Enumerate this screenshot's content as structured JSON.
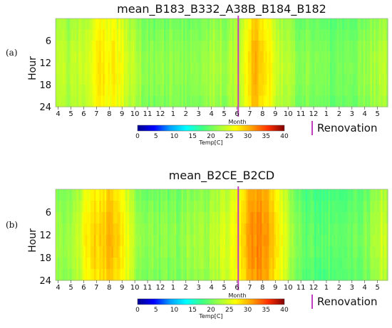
{
  "colors": {
    "renovation": "#c040c0",
    "colormap": [
      "#00008f",
      "#0000ff",
      "#00a0ff",
      "#00ffff",
      "#40ff80",
      "#a0ff40",
      "#ffff00",
      "#ffa000",
      "#ff3000",
      "#800000"
    ]
  },
  "renovation_legend": "Renovation",
  "chart_data": [
    {
      "type": "heatmap",
      "panel": "(a)",
      "title": "mean_B183_B332_A38B_B184_B182",
      "xlabel": "Month",
      "ylabel": "Hour",
      "x_ticks": [
        "4",
        "5",
        "6",
        "7",
        "8",
        "9",
        "10",
        "11",
        "12",
        "1",
        "2",
        "3",
        "4",
        "5",
        "6",
        "7",
        "8",
        "9",
        "10",
        "11",
        "12",
        "1",
        "2",
        "3",
        "4",
        "5"
      ],
      "y_ticks": [
        "6",
        "12",
        "18",
        "24"
      ],
      "y_range": [
        0,
        24
      ],
      "colorbar": {
        "label": "Temp[C]",
        "range": [
          0,
          40
        ],
        "ticks": [
          "0",
          "5",
          "10",
          "15",
          "20",
          "25",
          "30",
          "35",
          "40"
        ]
      },
      "renovation_index": 14.3,
      "monthly_mean_temp": [
        22,
        22,
        24,
        26,
        26,
        24,
        21,
        20,
        20,
        20,
        20,
        21,
        22,
        21,
        23,
        29,
        27,
        23,
        21,
        20,
        20,
        19,
        19,
        20,
        21,
        22
      ]
    },
    {
      "type": "heatmap",
      "panel": "(b)",
      "title": "mean_B2CE_B2CD",
      "xlabel": "Month",
      "ylabel": "Hour",
      "x_ticks": [
        "4",
        "5",
        "6",
        "7",
        "8",
        "9",
        "10",
        "11",
        "12",
        "1",
        "2",
        "3",
        "4",
        "5",
        "6",
        "7",
        "8",
        "9",
        "10",
        "11",
        "12",
        "1",
        "2",
        "3",
        "4",
        "5"
      ],
      "y_ticks": [
        "6",
        "12",
        "18",
        "24"
      ],
      "y_range": [
        0,
        24
      ],
      "colorbar": {
        "label": "Temp[C]",
        "range": [
          0,
          40
        ],
        "ticks": [
          "0",
          "5",
          "10",
          "15",
          "20",
          "25",
          "30",
          "35",
          "40"
        ]
      },
      "renovation_index": 14.3,
      "monthly_mean_temp": [
        21,
        22,
        26,
        28,
        29,
        25,
        21,
        20,
        20,
        20,
        21,
        21,
        22,
        24,
        27,
        31,
        30,
        26,
        21,
        18,
        18,
        18,
        18,
        19,
        20,
        23
      ]
    }
  ]
}
